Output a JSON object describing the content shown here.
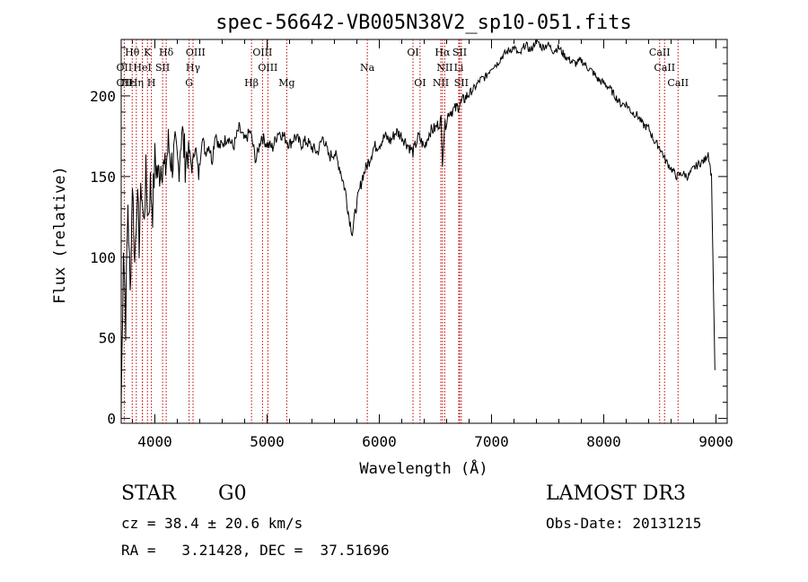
{
  "chart_data": {
    "type": "line",
    "title": "spec-56642-VB005N38V2_sp10-051.fits",
    "xlabel": "Wavelength (Å)",
    "ylabel": "Flux (relative)",
    "xlim": [
      3700,
      9100
    ],
    "ylim": [
      -3,
      235
    ],
    "x_ticks": [
      4000,
      5000,
      6000,
      7000,
      8000,
      9000
    ],
    "y_ticks": [
      0,
      50,
      100,
      150,
      200
    ],
    "series": [
      {
        "name": "flux",
        "x": [
          3700,
          3720,
          3740,
          3760,
          3780,
          3800,
          3820,
          3840,
          3860,
          3880,
          3900,
          3920,
          3940,
          3960,
          3980,
          4000,
          4030,
          4060,
          4090,
          4120,
          4150,
          4180,
          4210,
          4240,
          4270,
          4300,
          4330,
          4360,
          4390,
          4420,
          4450,
          4480,
          4510,
          4540,
          4570,
          4600,
          4650,
          4700,
          4750,
          4800,
          4850,
          4900,
          4950,
          5000,
          5050,
          5100,
          5150,
          5200,
          5250,
          5300,
          5350,
          5400,
          5450,
          5500,
          5550,
          5600,
          5650,
          5700,
          5730,
          5760,
          5790,
          5820,
          5850,
          5880,
          5910,
          5950,
          6000,
          6050,
          6100,
          6150,
          6200,
          6250,
          6300,
          6350,
          6400,
          6450,
          6500,
          6550,
          6562,
          6580,
          6620,
          6680,
          6720,
          6780,
          6850,
          6900,
          6950,
          7000,
          7050,
          7100,
          7150,
          7200,
          7250,
          7300,
          7350,
          7400,
          7450,
          7500,
          7550,
          7600,
          7650,
          7700,
          7750,
          7800,
          7850,
          7900,
          7950,
          8000,
          8050,
          8100,
          8150,
          8200,
          8250,
          8300,
          8350,
          8400,
          8450,
          8500,
          8550,
          8600,
          8650,
          8700,
          8750,
          8800,
          8850,
          8900,
          8930,
          8960,
          8990
        ],
        "values": [
          5,
          110,
          60,
          135,
          75,
          150,
          95,
          140,
          110,
          145,
          120,
          150,
          125,
          145,
          130,
          160,
          150,
          160,
          152,
          170,
          158,
          165,
          155,
          180,
          160,
          168,
          155,
          170,
          150,
          175,
          165,
          170,
          160,
          178,
          168,
          170,
          175,
          168,
          180,
          172,
          178,
          160,
          175,
          170,
          168,
          178,
          175,
          170,
          175,
          170,
          172,
          168,
          165,
          175,
          162,
          165,
          155,
          140,
          125,
          115,
          130,
          140,
          150,
          155,
          160,
          168,
          170,
          175,
          172,
          178,
          175,
          170,
          165,
          175,
          168,
          178,
          180,
          185,
          160,
          180,
          190,
          192,
          195,
          200,
          205,
          210,
          212,
          218,
          220,
          225,
          228,
          230,
          225,
          232,
          228,
          235,
          230,
          232,
          228,
          230,
          225,
          222,
          220,
          222,
          218,
          215,
          210,
          208,
          205,
          200,
          195,
          195,
          190,
          188,
          182,
          180,
          172,
          168,
          160,
          155,
          150,
          152,
          150,
          155,
          158,
          160,
          165,
          150,
          30
        ]
      }
    ],
    "lines": [
      {
        "name": "CaII H",
        "x": 3969
      },
      {
        "name": "CaII K",
        "x": 3934
      },
      {
        "name": "Hβ",
        "x": 4861
      },
      {
        "name": "Hγ",
        "x": 4340
      },
      {
        "name": "Hδ",
        "x": 4101
      },
      {
        "name": "Hα",
        "x": 6563
      },
      {
        "name": "Mg",
        "x": 5175
      },
      {
        "name": "Na",
        "x": 5893
      },
      {
        "name": "G",
        "x": 4305
      },
      {
        "name": "OIII",
        "x": 4959
      },
      {
        "name": "OIII",
        "x": 5007
      },
      {
        "name": "OI",
        "x": 6300
      },
      {
        "name": "OI",
        "x": 6363
      },
      {
        "name": "NII",
        "x": 6548
      },
      {
        "name": "NII",
        "x": 6583
      },
      {
        "name": "SII",
        "x": 6716
      },
      {
        "name": "SII",
        "x": 6731
      },
      {
        "name": "Li",
        "x": 6708
      },
      {
        "name": "CaII",
        "x": 8498
      },
      {
        "name": "CaII",
        "x": 8542
      },
      {
        "name": "CaII",
        "x": 8662
      },
      {
        "name": "OII",
        "x": 3727
      },
      {
        "name": "Hε",
        "x": 3889
      },
      {
        "name": "Hθ",
        "x": 3798
      },
      {
        "name": "Hη",
        "x": 3835
      },
      {
        "name": "HeI",
        "x": 3889
      },
      {
        "name": "SII",
        "x": 4069
      }
    ],
    "labels": [
      {
        "text": "Hθ",
        "x": 3798,
        "row": 0
      },
      {
        "text": "K",
        "x": 3934,
        "row": 0
      },
      {
        "text": "Hδ",
        "x": 4101,
        "row": 0
      },
      {
        "text": "OIII",
        "x": 4363,
        "row": 0
      },
      {
        "text": "OIII",
        "x": 4959,
        "row": 0
      },
      {
        "text": "OI",
        "x": 6300,
        "row": 0
      },
      {
        "text": "Hα",
        "x": 6563,
        "row": 0
      },
      {
        "text": "SII",
        "x": 6716,
        "row": 0
      },
      {
        "text": "CaII",
        "x": 8498,
        "row": 0
      },
      {
        "text": "OII",
        "x": 3727,
        "row": 1
      },
      {
        "text": "HeI",
        "x": 3889,
        "row": 1
      },
      {
        "text": "SII",
        "x": 4069,
        "row": 1
      },
      {
        "text": "Hγ",
        "x": 4340,
        "row": 1
      },
      {
        "text": "OIII",
        "x": 5007,
        "row": 1
      },
      {
        "text": "Na",
        "x": 5893,
        "row": 1
      },
      {
        "text": "NII",
        "x": 6583,
        "row": 1
      },
      {
        "text": "Li",
        "x": 6708,
        "row": 1
      },
      {
        "text": "CaII",
        "x": 8542,
        "row": 1
      },
      {
        "text": "OII",
        "x": 3727,
        "row": 2
      },
      {
        "text": "Hε",
        "x": 3760,
        "row": 2
      },
      {
        "text": "Hη",
        "x": 3835,
        "row": 2
      },
      {
        "text": "H",
        "x": 3969,
        "row": 2
      },
      {
        "text": "G",
        "x": 4305,
        "row": 2
      },
      {
        "text": "Hβ",
        "x": 4861,
        "row": 2
      },
      {
        "text": "Mg",
        "x": 5175,
        "row": 2
      },
      {
        "text": "OI",
        "x": 6363,
        "row": 2
      },
      {
        "text": "NII",
        "x": 6548,
        "row": 2
      },
      {
        "text": "SII",
        "x": 6731,
        "row": 2
      },
      {
        "text": "CaII",
        "x": 8662,
        "row": 2
      }
    ]
  },
  "info": {
    "class": "STAR",
    "subclass": "G0",
    "survey": "LAMOST DR3",
    "cz": "cz = 38.4 ± 20.6 km/s",
    "obs_date": "Obs-Date: 20131215",
    "coords": "RA =   3.21428, DEC =  37.51696"
  },
  "colors": {
    "line_marker": "#c00000",
    "spectrum": "#000000"
  }
}
